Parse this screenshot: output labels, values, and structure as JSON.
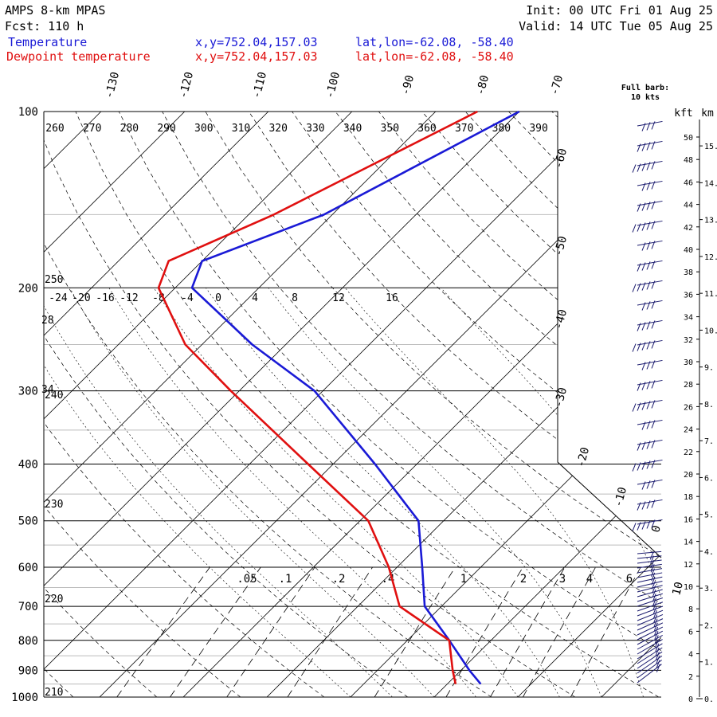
{
  "header": {
    "model": "AMPS 8-km MPAS",
    "forecast": "Fcst:  110 h",
    "init": "Init: 00 UTC Fri 01 Aug 25",
    "valid": "Valid: 14 UTC Tue 05 Aug 25",
    "temp_label": "Temperature",
    "dewp_label": "Dewpoint temperature",
    "xy_temp": "x,y=752.04,157.03",
    "xy_dewp": "x,y=752.04,157.03",
    "latlon_temp": "lat,lon=-62.08, -58.40",
    "latlon_dewp": "lat,lon=-62.08, -58.40",
    "barb_note_1": "Full barb:",
    "barb_note_2": "10 kts",
    "unit_kft": "kft",
    "unit_km": "km"
  },
  "colors": {
    "temperature": "#1a1ad6",
    "dewpoint": "#e01010",
    "barbs": "#1a1a6e",
    "header_blue": "#1a1ad6",
    "header_red": "#e01010"
  },
  "chart_data": {
    "type": "line",
    "title": "",
    "xlabel": "",
    "ylabel": "",
    "y_scale": "log",
    "pressure_levels": [
      100,
      200,
      300,
      400,
      500,
      600,
      700,
      800,
      900,
      1000
    ],
    "ylim": [
      1000,
      100
    ],
    "series": [
      {
        "name": "Temperature",
        "color": "#1a1ad6",
        "points": [
          [
            100,
            -70
          ],
          [
            150,
            -81
          ],
          [
            180,
            -90
          ],
          [
            200,
            -88
          ],
          [
            250,
            -74
          ],
          [
            300,
            -61
          ],
          [
            400,
            -45
          ],
          [
            500,
            -33
          ],
          [
            600,
            -27
          ],
          [
            700,
            -22
          ],
          [
            800,
            -15
          ],
          [
            900,
            -9
          ],
          [
            950,
            -6
          ]
        ]
      },
      {
        "name": "Dewpoint temperature",
        "color": "#e01010",
        "points": [
          [
            100,
            -75
          ],
          [
            150,
            -87
          ],
          [
            180,
            -94
          ],
          [
            200,
            -92
          ],
          [
            250,
            -82
          ],
          [
            300,
            -71
          ],
          [
            400,
            -53
          ],
          [
            500,
            -39
          ],
          [
            600,
            -31
          ],
          [
            700,
            -25
          ],
          [
            800,
            -15
          ],
          [
            900,
            -11
          ],
          [
            950,
            -9
          ]
        ]
      }
    ],
    "isotherm_labels": [
      "-130",
      "-120",
      "-110",
      "-100",
      "-90",
      "-80",
      "-70",
      "-60",
      "-50",
      "-40",
      "-30",
      "-20",
      "-10",
      "0",
      "10"
    ],
    "theta_labels": [
      "260",
      "270",
      "280",
      "290",
      "300",
      "310",
      "320",
      "330",
      "340",
      "350",
      "360",
      "370",
      "380",
      "390"
    ],
    "lifted_index_labels": [
      "-24",
      "-20",
      "-16",
      "-12",
      "-8",
      "-4",
      "0",
      "4",
      "8",
      "12",
      "16"
    ],
    "theta_side_labels": [
      "250",
      "240",
      "230",
      "220",
      "210",
      "28",
      "34"
    ],
    "mixing_ratio_labels": [
      ".05",
      ".1",
      ".2",
      ".4",
      "1",
      "2",
      "3",
      "4",
      "6"
    ],
    "kft_ticks": [
      "50",
      "48",
      "46",
      "44",
      "42",
      "40",
      "38",
      "36",
      "34",
      "32",
      "30",
      "28",
      "26",
      "24",
      "22",
      "20",
      "18",
      "16",
      "14",
      "12",
      "10",
      "8",
      "6",
      "4",
      "2",
      "0"
    ],
    "km_ticks": [
      "15.",
      "14.",
      "13.",
      "12.",
      "11.",
      "10.",
      "9.",
      "8.",
      "7.",
      "6.",
      "5.",
      "4.",
      "3.",
      "2.",
      "1.",
      "0."
    ],
    "grid": true
  }
}
